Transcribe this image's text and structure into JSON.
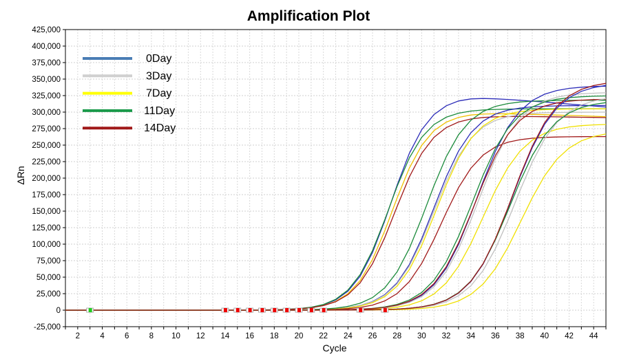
{
  "chart_data": {
    "type": "line",
    "title": "Amplification Plot",
    "xlabel": "Cycle",
    "ylabel": "ΔRn",
    "xlim": [
      1,
      45
    ],
    "ylim": [
      -25000,
      425000
    ],
    "xticks": [
      2,
      4,
      6,
      8,
      10,
      12,
      14,
      16,
      18,
      20,
      22,
      24,
      26,
      28,
      30,
      32,
      34,
      36,
      38,
      40,
      42,
      44
    ],
    "yticks": [
      -25000,
      0,
      25000,
      50000,
      75000,
      100000,
      125000,
      150000,
      175000,
      200000,
      225000,
      250000,
      275000,
      300000,
      325000,
      350000,
      375000,
      400000,
      425000
    ],
    "ytick_labels": [
      "-25,000",
      "0",
      "25,000",
      "50,000",
      "75,000",
      "100,000",
      "125,000",
      "150,000",
      "175,000",
      "200,000",
      "225,000",
      "250,000",
      "275,000",
      "300,000",
      "325,000",
      "350,000",
      "375,000",
      "400,000",
      "425,000"
    ],
    "grid": true,
    "legend_position": "top-left",
    "legend": [
      {
        "name": "0Day",
        "color": "#4a7db5"
      },
      {
        "name": "3Day",
        "color": "#d0d0d0"
      },
      {
        "name": "7Day",
        "color": "#ffff00"
      },
      {
        "name": "11Day",
        "color": "#1a9a4a"
      },
      {
        "name": "14Day",
        "color": "#a01818"
      }
    ],
    "series": [
      {
        "name": "0Day",
        "color": "#2b2bb8",
        "midpoint": 27.5,
        "plateau": 325000,
        "slope": 1.5,
        "decline": 1500
      },
      {
        "name": "7Day",
        "color": "#f0c000",
        "midpoint": 27.6,
        "plateau": 300000,
        "slope": 1.5,
        "decline": 600
      },
      {
        "name": "11Day",
        "color": "#1a8a3a",
        "midpoint": 27.3,
        "plateau": 305000,
        "slope": 1.5,
        "decline": 0
      },
      {
        "name": "14Day",
        "color": "#a01818",
        "midpoint": 27.8,
        "plateau": 295000,
        "slope": 1.55,
        "decline": 300
      },
      {
        "name": "0Day",
        "color": "#2b2bb8",
        "midpoint": 31.0,
        "plateau": 310000,
        "slope": 1.6,
        "decline": 0
      },
      {
        "name": "3Day",
        "color": "#c0c0c0",
        "midpoint": 31.0,
        "plateau": 300000,
        "slope": 1.6,
        "decline": 0
      },
      {
        "name": "7Day",
        "color": "#f0e000",
        "midpoint": 31.2,
        "plateau": 305000,
        "slope": 1.6,
        "decline": 0
      },
      {
        "name": "11Day",
        "color": "#1a8a3a",
        "midpoint": 30.4,
        "plateau": 318000,
        "slope": 1.6,
        "decline": 0
      },
      {
        "name": "14Day",
        "color": "#a01818",
        "midpoint": 31.6,
        "plateau": 263000,
        "slope": 1.6,
        "decline": 0
      },
      {
        "name": "0Day",
        "color": "#2b2bb8",
        "midpoint": 34.5,
        "plateau": 340000,
        "slope": 1.7,
        "decline": 0
      },
      {
        "name": "3Day",
        "color": "#c0c0c0",
        "midpoint": 34.6,
        "plateau": 330000,
        "slope": 1.7,
        "decline": 0
      },
      {
        "name": "7Day",
        "color": "#f0e000",
        "midpoint": 35.0,
        "plateau": 282000,
        "slope": 1.7,
        "decline": 0
      },
      {
        "name": "11Day",
        "color": "#1a8a3a",
        "midpoint": 34.1,
        "plateau": 325000,
        "slope": 1.7,
        "decline": 0
      },
      {
        "name": "14Day",
        "color": "#a01818",
        "midpoint": 34.3,
        "plateau": 320000,
        "slope": 1.7,
        "decline": 0
      },
      {
        "name": "0Day",
        "color": "#2b2bb8",
        "midpoint": 37.4,
        "plateau": 345000,
        "slope": 1.75,
        "decline": 0
      },
      {
        "name": "3Day",
        "color": "#c0c0c0",
        "midpoint": 37.6,
        "plateau": 325000,
        "slope": 1.75,
        "decline": 0
      },
      {
        "name": "7Day",
        "color": "#f0e000",
        "midpoint": 38.1,
        "plateau": 272000,
        "slope": 1.75,
        "decline": 0
      },
      {
        "name": "11Day",
        "color": "#1a8a3a",
        "midpoint": 37.2,
        "plateau": 318000,
        "slope": 1.75,
        "decline": 0
      },
      {
        "name": "14Day",
        "color": "#a01818",
        "midpoint": 37.4,
        "plateau": 348000,
        "slope": 1.75,
        "decline": 0
      }
    ],
    "markers": [
      {
        "cycle": 3,
        "color": "#22cc22"
      },
      {
        "cycle": 14,
        "color": "#ee0000"
      },
      {
        "cycle": 15,
        "color": "#ee0000"
      },
      {
        "cycle": 16,
        "color": "#ee0000"
      },
      {
        "cycle": 17,
        "color": "#ee0000"
      },
      {
        "cycle": 18,
        "color": "#ee0000"
      },
      {
        "cycle": 19,
        "color": "#ee0000"
      },
      {
        "cycle": 20,
        "color": "#ee0000"
      },
      {
        "cycle": 21,
        "color": "#ee0000"
      },
      {
        "cycle": 22,
        "color": "#ee0000"
      },
      {
        "cycle": 25,
        "color": "#ee0000"
      },
      {
        "cycle": 27,
        "color": "#ee0000"
      }
    ]
  }
}
